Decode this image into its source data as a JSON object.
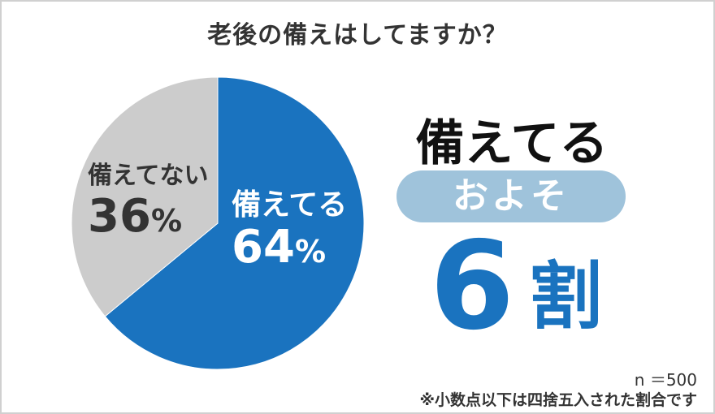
{
  "chart_data": {
    "type": "pie",
    "title": "老後の備えはしてますか？",
    "slices": [
      {
        "label": "備えてる",
        "value": 64,
        "pct_text": "64",
        "color": "#1a73bf"
      },
      {
        "label": "備えてない",
        "value": 36,
        "pct_text": "36",
        "color": "#cccccc"
      }
    ],
    "percent_symbol": "%",
    "start_angle_deg": 0,
    "direction": "clockwise"
  },
  "headline": {
    "top": "備えてる",
    "pill": "およそ",
    "number": "6",
    "unit": "割"
  },
  "notes": {
    "n": "n ＝500",
    "rounding": "※小数点以下は四捨五入された割合です"
  }
}
